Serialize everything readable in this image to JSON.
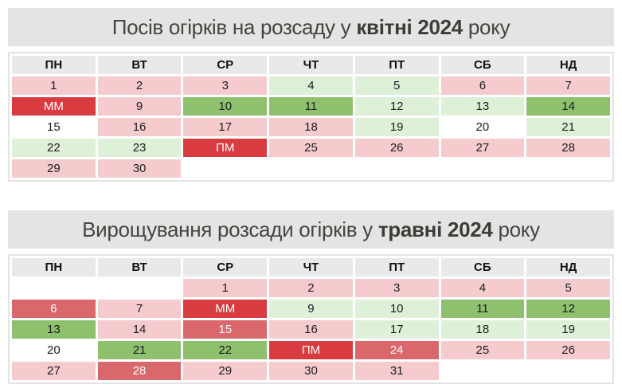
{
  "styles": {
    "title_bg": "#e4e4e4",
    "title_fg": "#45453f",
    "header_bg": "#e9e9e9",
    "header_fg": "#111111",
    "table_border": "#e3e3e3",
    "cell_types": {
      "red": {
        "bg": "#d83c40",
        "fg": "#ffffff"
      },
      "medred": {
        "bg": "#d9676b",
        "fg": "#ffffff"
      },
      "pink": {
        "bg": "#f5cbce",
        "fg": "#1c1c1c"
      },
      "green": {
        "bg": "#8fc06e",
        "fg": "#1c1c1c"
      },
      "lgreen": {
        "bg": "#def0d8",
        "fg": "#1c1c1c"
      },
      "white": {
        "bg": "#ffffff",
        "fg": "#1c1c1c"
      },
      "empty": {
        "bg": "#ffffff",
        "fg": "#1c1c1c"
      }
    }
  },
  "calendars": [
    {
      "id": "april-2024",
      "title_prefix": "Посів огірків на розсаду у ",
      "title_bold": "квітні 2024",
      "title_suffix": " року",
      "day_headers": [
        "ПН",
        "ВТ",
        "СР",
        "ЧТ",
        "ПТ",
        "СБ",
        "НД"
      ],
      "weeks": [
        [
          {
            "label": "1",
            "type": "pink"
          },
          {
            "label": "2",
            "type": "pink"
          },
          {
            "label": "3",
            "type": "pink"
          },
          {
            "label": "4",
            "type": "lgreen"
          },
          {
            "label": "5",
            "type": "lgreen"
          },
          {
            "label": "6",
            "type": "pink"
          },
          {
            "label": "7",
            "type": "pink"
          }
        ],
        [
          {
            "label": "ММ",
            "type": "red"
          },
          {
            "label": "9",
            "type": "pink"
          },
          {
            "label": "10",
            "type": "green"
          },
          {
            "label": "11",
            "type": "green"
          },
          {
            "label": "12",
            "type": "lgreen"
          },
          {
            "label": "13",
            "type": "lgreen"
          },
          {
            "label": "14",
            "type": "green"
          }
        ],
        [
          {
            "label": "15",
            "type": "white"
          },
          {
            "label": "16",
            "type": "pink"
          },
          {
            "label": "17",
            "type": "pink"
          },
          {
            "label": "18",
            "type": "pink"
          },
          {
            "label": "19",
            "type": "lgreen"
          },
          {
            "label": "20",
            "type": "white"
          },
          {
            "label": "21",
            "type": "lgreen"
          }
        ],
        [
          {
            "label": "22",
            "type": "lgreen"
          },
          {
            "label": "23",
            "type": "lgreen"
          },
          {
            "label": "ПМ",
            "type": "red"
          },
          {
            "label": "25",
            "type": "pink"
          },
          {
            "label": "26",
            "type": "pink"
          },
          {
            "label": "27",
            "type": "pink"
          },
          {
            "label": "28",
            "type": "pink"
          }
        ],
        [
          {
            "label": "29",
            "type": "pink"
          },
          {
            "label": "30",
            "type": "pink"
          },
          {
            "label": "",
            "type": "empty"
          },
          {
            "label": "",
            "type": "empty"
          },
          {
            "label": "",
            "type": "empty"
          },
          {
            "label": "",
            "type": "empty"
          },
          {
            "label": "",
            "type": "empty"
          }
        ]
      ]
    },
    {
      "id": "may-2024",
      "title_prefix": "Вирощування розсади огірків у ",
      "title_bold": "травні 2024",
      "title_suffix": " року",
      "day_headers": [
        "ПН",
        "ВТ",
        "СР",
        "ЧТ",
        "ПТ",
        "СБ",
        "НД"
      ],
      "weeks": [
        [
          {
            "label": "",
            "type": "empty"
          },
          {
            "label": "",
            "type": "empty"
          },
          {
            "label": "1",
            "type": "pink"
          },
          {
            "label": "2",
            "type": "pink"
          },
          {
            "label": "3",
            "type": "pink"
          },
          {
            "label": "4",
            "type": "pink"
          },
          {
            "label": "5",
            "type": "pink"
          }
        ],
        [
          {
            "label": "6",
            "type": "medred"
          },
          {
            "label": "7",
            "type": "pink"
          },
          {
            "label": "ММ",
            "type": "red"
          },
          {
            "label": "9",
            "type": "lgreen"
          },
          {
            "label": "10",
            "type": "lgreen"
          },
          {
            "label": "11",
            "type": "green"
          },
          {
            "label": "12",
            "type": "green"
          }
        ],
        [
          {
            "label": "13",
            "type": "green"
          },
          {
            "label": "14",
            "type": "pink"
          },
          {
            "label": "15",
            "type": "medred"
          },
          {
            "label": "16",
            "type": "pink"
          },
          {
            "label": "17",
            "type": "lgreen"
          },
          {
            "label": "18",
            "type": "lgreen"
          },
          {
            "label": "19",
            "type": "lgreen"
          }
        ],
        [
          {
            "label": "20",
            "type": "white"
          },
          {
            "label": "21",
            "type": "green"
          },
          {
            "label": "22",
            "type": "green"
          },
          {
            "label": "ПМ",
            "type": "red"
          },
          {
            "label": "24",
            "type": "medred"
          },
          {
            "label": "25",
            "type": "pink"
          },
          {
            "label": "26",
            "type": "pink"
          }
        ],
        [
          {
            "label": "27",
            "type": "pink"
          },
          {
            "label": "28",
            "type": "medred"
          },
          {
            "label": "29",
            "type": "pink"
          },
          {
            "label": "30",
            "type": "pink"
          },
          {
            "label": "31",
            "type": "pink"
          },
          {
            "label": "",
            "type": "empty"
          },
          {
            "label": "",
            "type": "empty"
          }
        ]
      ]
    }
  ]
}
